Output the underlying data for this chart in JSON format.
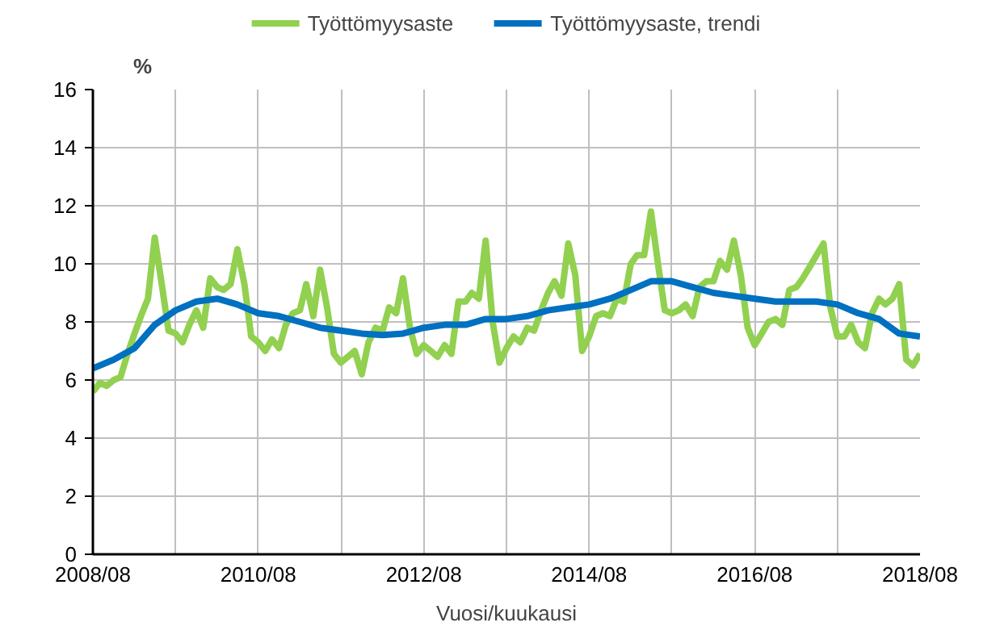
{
  "chart_data": {
    "type": "line",
    "xlabel": "Vuosi/kuukausi",
    "ylabel": "%",
    "xlim": [
      "2008-08",
      "2018-08"
    ],
    "ylim": [
      0,
      16
    ],
    "yticks": [
      0,
      2,
      4,
      6,
      8,
      10,
      12,
      14,
      16
    ],
    "xticks": [
      {
        "value": "2008-08",
        "label": "2008/08"
      },
      {
        "value": "2009-08",
        "label": null
      },
      {
        "value": "2010-08",
        "label": "2010/08"
      },
      {
        "value": "2011-08",
        "label": null
      },
      {
        "value": "2012-08",
        "label": "2012/08"
      },
      {
        "value": "2013-08",
        "label": null
      },
      {
        "value": "2014-08",
        "label": "2014/08"
      },
      {
        "value": "2015-08",
        "label": null
      },
      {
        "value": "2016-08",
        "label": "2016/08"
      },
      {
        "value": "2017-08",
        "label": null
      },
      {
        "value": "2018-08",
        "label": "2018/08"
      }
    ],
    "grid": true,
    "legend": "top",
    "marker": "none",
    "line_style": "solid",
    "series": [
      {
        "name": "Työttömyysaste",
        "color": "#92d050",
        "x": [
          "2008-08",
          "2008-09",
          "2008-10",
          "2008-11",
          "2008-12",
          "2009-01",
          "2009-02",
          "2009-03",
          "2009-04",
          "2009-05",
          "2009-06",
          "2009-07",
          "2009-08",
          "2009-09",
          "2009-10",
          "2009-11",
          "2009-12",
          "2010-01",
          "2010-02",
          "2010-03",
          "2010-04",
          "2010-05",
          "2010-06",
          "2010-07",
          "2010-08",
          "2010-09",
          "2010-10",
          "2010-11",
          "2010-12",
          "2011-01",
          "2011-02",
          "2011-03",
          "2011-04",
          "2011-05",
          "2011-06",
          "2011-07",
          "2011-08",
          "2011-09",
          "2011-10",
          "2011-11",
          "2011-12",
          "2012-01",
          "2012-02",
          "2012-03",
          "2012-04",
          "2012-05",
          "2012-06",
          "2012-07",
          "2012-08",
          "2012-09",
          "2012-10",
          "2012-11",
          "2012-12",
          "2013-01",
          "2013-02",
          "2013-03",
          "2013-04",
          "2013-05",
          "2013-06",
          "2013-07",
          "2013-08",
          "2013-09",
          "2013-10",
          "2013-11",
          "2013-12",
          "2014-01",
          "2014-02",
          "2014-03",
          "2014-04",
          "2014-05",
          "2014-06",
          "2014-07",
          "2014-08",
          "2014-09",
          "2014-10",
          "2014-11",
          "2014-12",
          "2015-01",
          "2015-02",
          "2015-03",
          "2015-04",
          "2015-05",
          "2015-06",
          "2015-07",
          "2015-08",
          "2015-09",
          "2015-10",
          "2015-11",
          "2015-12",
          "2016-01",
          "2016-02",
          "2016-03",
          "2016-04",
          "2016-05",
          "2016-06",
          "2016-07",
          "2016-08",
          "2016-09",
          "2016-10",
          "2016-11",
          "2016-12",
          "2017-01",
          "2017-02",
          "2017-03",
          "2017-04",
          "2017-05",
          "2017-06",
          "2017-07",
          "2017-08",
          "2017-09",
          "2017-10",
          "2017-11",
          "2017-12",
          "2018-01",
          "2018-02",
          "2018-03",
          "2018-04",
          "2018-05",
          "2018-06",
          "2018-07",
          "2018-08"
        ],
        "values": [
          5.6,
          5.9,
          5.8,
          6.0,
          6.1,
          6.9,
          7.6,
          8.2,
          8.8,
          10.9,
          9.3,
          7.7,
          7.6,
          7.3,
          7.9,
          8.4,
          7.8,
          9.5,
          9.2,
          9.1,
          9.3,
          10.5,
          9.3,
          7.5,
          7.3,
          7.0,
          7.4,
          7.1,
          7.9,
          8.3,
          8.4,
          9.3,
          8.2,
          9.8,
          8.5,
          6.9,
          6.6,
          6.8,
          7.0,
          6.2,
          7.3,
          7.8,
          7.7,
          8.5,
          8.3,
          9.5,
          7.8,
          6.9,
          7.2,
          7.0,
          6.8,
          7.2,
          6.9,
          8.7,
          8.7,
          9.0,
          8.8,
          10.8,
          8.0,
          6.6,
          7.1,
          7.5,
          7.3,
          7.8,
          7.7,
          8.4,
          9.0,
          9.4,
          8.9,
          10.7,
          9.6,
          7.0,
          7.5,
          8.2,
          8.3,
          8.2,
          8.8,
          8.7,
          10.0,
          10.3,
          10.3,
          11.8,
          10.0,
          8.4,
          8.3,
          8.4,
          8.6,
          8.2,
          9.2,
          9.4,
          9.4,
          10.1,
          9.8,
          10.8,
          9.6,
          7.8,
          7.2,
          7.6,
          8.0,
          8.1,
          7.9,
          9.1,
          9.2,
          9.5,
          9.9,
          10.3,
          10.7,
          8.5,
          7.5,
          7.5,
          7.9,
          7.3,
          7.1,
          8.3,
          8.8,
          8.6,
          8.8,
          9.3,
          6.7,
          6.5,
          6.9
        ]
      },
      {
        "name": "Työttömyysaste, trendi",
        "color": "#0070c0",
        "x": [
          "2008-08",
          "2008-11",
          "2009-02",
          "2009-05",
          "2009-08",
          "2009-11",
          "2010-02",
          "2010-05",
          "2010-08",
          "2010-11",
          "2011-02",
          "2011-05",
          "2011-08",
          "2011-11",
          "2012-02",
          "2012-05",
          "2012-08",
          "2012-11",
          "2013-02",
          "2013-05",
          "2013-08",
          "2013-11",
          "2014-02",
          "2014-05",
          "2014-08",
          "2014-11",
          "2015-02",
          "2015-05",
          "2015-08",
          "2015-11",
          "2016-02",
          "2016-05",
          "2016-08",
          "2016-11",
          "2017-02",
          "2017-05",
          "2017-08",
          "2017-11",
          "2018-02",
          "2018-05",
          "2018-08"
        ],
        "values": [
          6.4,
          6.7,
          7.1,
          7.9,
          8.4,
          8.7,
          8.8,
          8.6,
          8.3,
          8.2,
          8.0,
          7.8,
          7.7,
          7.6,
          7.55,
          7.6,
          7.8,
          7.9,
          7.9,
          8.1,
          8.1,
          8.2,
          8.4,
          8.5,
          8.6,
          8.8,
          9.1,
          9.4,
          9.4,
          9.2,
          9.0,
          8.9,
          8.8,
          8.7,
          8.7,
          8.7,
          8.6,
          8.3,
          8.1,
          7.6,
          7.5
        ]
      }
    ]
  }
}
